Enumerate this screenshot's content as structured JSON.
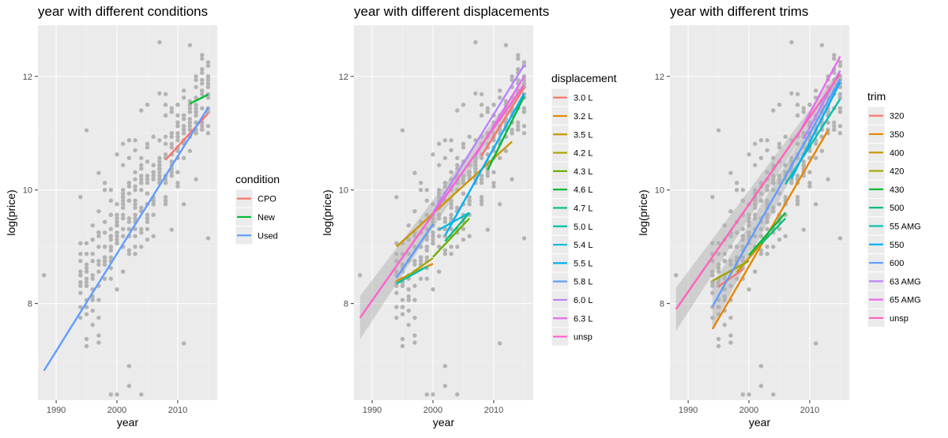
{
  "chart_data": [
    {
      "type": "scatter",
      "title": "year with different conditions",
      "xlabel": "year",
      "ylabel": "log(price)",
      "xlim": [
        1987,
        2016.5
      ],
      "ylim": [
        6.3,
        12.9
      ],
      "xticks": [
        1990,
        2000,
        2010
      ],
      "yticks": [
        8,
        10,
        12
      ],
      "legend": {
        "title": "condition",
        "position": "right"
      },
      "points_color": "#b3b3b3",
      "series": [
        {
          "name": "CPO",
          "color": "#F8766D",
          "line": [
            [
              2008,
              10.53
            ],
            [
              2015,
              11.35
            ]
          ]
        },
        {
          "name": "New",
          "color": "#00BA38",
          "line": [
            [
              2012,
              11.52
            ],
            [
              2015,
              11.68
            ]
          ]
        },
        {
          "name": "Used",
          "color": "#619CFF",
          "line": [
            [
              1988,
              6.82
            ],
            [
              2015,
              11.45
            ]
          ]
        }
      ]
    },
    {
      "type": "scatter",
      "title": "year with different displacements",
      "xlabel": "year",
      "ylabel": "log(price)",
      "xlim": [
        1987,
        2016.5
      ],
      "ylim": [
        6.3,
        12.9
      ],
      "xticks": [
        1990,
        2000,
        2010
      ],
      "yticks": [
        8,
        10,
        12
      ],
      "legend": {
        "title": "displacement",
        "position": "right"
      },
      "points_color": "#b3b3b3",
      "series": [
        {
          "name": "3.0 L",
          "color": "#F8766D",
          "line": [
            [
              2008,
              10.6
            ],
            [
              2015,
              11.8
            ]
          ]
        },
        {
          "name": "3.2 L",
          "color": "#E58700",
          "line": [
            [
              1994,
              8.4
            ],
            [
              2000,
              8.7
            ]
          ]
        },
        {
          "name": "3.5 L",
          "color": "#C99800",
          "line": [
            [
              1994,
              9.0
            ],
            [
              2013,
              10.85
            ]
          ]
        },
        {
          "name": "4.2 L",
          "color": "#A3A500",
          "line": [
            [
              1994,
              8.35
            ],
            [
              2000,
              8.8
            ]
          ]
        },
        {
          "name": "4.3 L",
          "color": "#6BB100",
          "line": [
            [
              2000,
              8.82
            ],
            [
              2006,
              9.5
            ]
          ]
        },
        {
          "name": "4.6 L",
          "color": "#00BA38",
          "line": [
            [
              2009,
              10.35
            ],
            [
              2015,
              11.65
            ]
          ]
        },
        {
          "name": "4.7 L",
          "color": "#00BF7D",
          "line": [
            [
              2002,
              9.1
            ],
            [
              2006,
              9.6
            ]
          ]
        },
        {
          "name": "5.0 L",
          "color": "#00C0AF",
          "line": [
            [
              1994,
              8.35
            ],
            [
              1999,
              8.65
            ]
          ]
        },
        {
          "name": "5.4 L",
          "color": "#00BCD8",
          "line": [
            [
              2001,
              9.3
            ],
            [
              2006,
              9.6
            ]
          ]
        },
        {
          "name": "5.5 L",
          "color": "#00B0F6",
          "line": [
            [
              2002,
              9.2
            ],
            [
              2015,
              11.7
            ]
          ]
        },
        {
          "name": "5.8 L",
          "color": "#619CFF",
          "line": [
            [
              1994,
              8.45
            ],
            [
              2000,
              9.4
            ]
          ]
        },
        {
          "name": "6.0 L",
          "color": "#B983FF",
          "line": [
            [
              2000,
              9.6
            ],
            [
              2015,
              12.2
            ]
          ]
        },
        {
          "name": "6.3 L",
          "color": "#E76BF3",
          "line": [
            [
              2007,
              10.6
            ],
            [
              2015,
              12.0
            ]
          ]
        },
        {
          "name": "unsp",
          "color": "#FD61D1",
          "line": [
            [
              1988,
              7.75
            ],
            [
              2015,
              11.85
            ]
          ]
        }
      ]
    },
    {
      "type": "scatter",
      "title": "year with different trims",
      "xlabel": "year",
      "ylabel": "log(price)",
      "xlim": [
        1987,
        2016.5
      ],
      "ylim": [
        6.3,
        12.9
      ],
      "xticks": [
        1990,
        2000,
        2010
      ],
      "yticks": [
        8,
        10,
        12
      ],
      "legend": {
        "title": "trim",
        "position": "right"
      },
      "points_color": "#b3b3b3",
      "series": [
        {
          "name": "320",
          "color": "#F8766D",
          "line": [
            [
              1995,
              8.3
            ],
            [
              1999,
              8.6
            ]
          ]
        },
        {
          "name": "350",
          "color": "#E58700",
          "line": [
            [
              1994,
              7.55
            ],
            [
              2013,
              11.05
            ]
          ]
        },
        {
          "name": "400",
          "color": "#C99800",
          "line": [
            [
              1998,
              8.55
            ],
            [
              2002,
              9.05
            ]
          ]
        },
        {
          "name": "420",
          "color": "#A3A500",
          "line": [
            [
              1994,
              8.4
            ],
            [
              2000,
              8.75
            ]
          ]
        },
        {
          "name": "430",
          "color": "#00BA38",
          "line": [
            [
              2000,
              8.85
            ],
            [
              2006,
              9.6
            ]
          ]
        },
        {
          "name": "500",
          "color": "#00BF7D",
          "line": [
            [
              2002,
              9.05
            ],
            [
              2006,
              9.5
            ]
          ]
        },
        {
          "name": "55 AMG",
          "color": "#00C0AF",
          "line": [
            [
              2006,
              10.1
            ],
            [
              2015,
              11.6
            ]
          ]
        },
        {
          "name": "550",
          "color": "#00B0F6",
          "line": [
            [
              2007,
              10.2
            ],
            [
              2015,
              11.9
            ]
          ]
        },
        {
          "name": "600",
          "color": "#619CFF",
          "line": [
            [
              1994,
              7.95
            ],
            [
              2015,
              11.95
            ]
          ]
        },
        {
          "name": "63 AMG",
          "color": "#B983FF",
          "line": [
            [
              2009,
              10.9
            ],
            [
              2015,
              12.1
            ]
          ]
        },
        {
          "name": "65 AMG",
          "color": "#E76BF3",
          "line": [
            [
              2008,
              10.95
            ],
            [
              2015,
              12.35
            ]
          ]
        },
        {
          "name": "unsp",
          "color": "#FF62BC",
          "line": [
            [
              1988,
              7.9
            ],
            [
              2015,
              12.05
            ]
          ]
        }
      ]
    }
  ]
}
